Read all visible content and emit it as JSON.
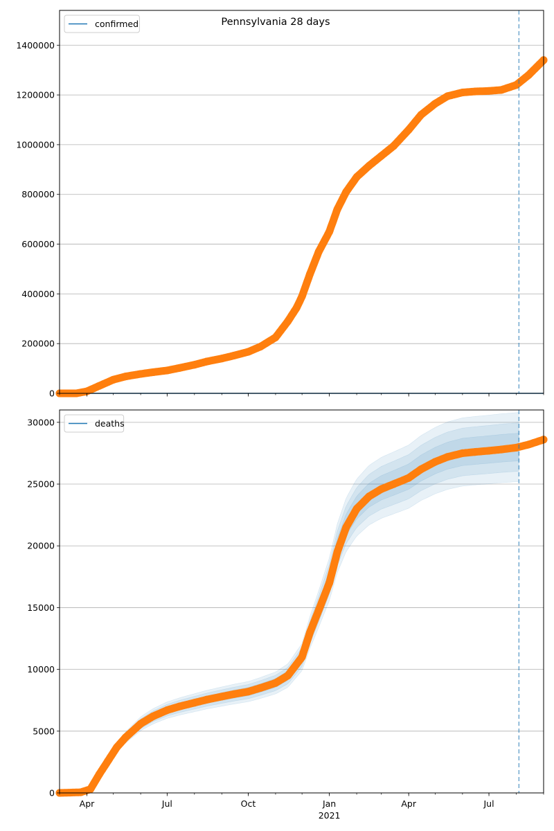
{
  "figure": {
    "title": "Pennsylvania 28 days",
    "colors": {
      "observed": "#ff7f0e",
      "model": "#1f77b4",
      "band": "#1f77b4",
      "grid": "#b0b0b0",
      "forecast_line": "#1f77b4"
    }
  },
  "chart_data": [
    {
      "type": "line",
      "name": "confirmed-panel",
      "legend": [
        "confirmed"
      ],
      "legend_position": "top-left",
      "grid": "horizontal",
      "x_range": [
        "2020-03-01",
        "2021-09-01"
      ],
      "ylim": [
        0,
        1540000
      ],
      "yticks": [
        0,
        200000,
        400000,
        600000,
        800000,
        1000000,
        1200000,
        1400000
      ],
      "xtick_labels": [
        {
          "date": "2020-04-01",
          "label": "Apr"
        },
        {
          "date": "2020-07-01",
          "label": "Jul"
        },
        {
          "date": "2020-10-01",
          "label": "Oct"
        },
        {
          "date": "2021-01-01",
          "label": "Jan",
          "sublabel": "2021"
        },
        {
          "date": "2021-04-01",
          "label": "Apr"
        },
        {
          "date": "2021-07-01",
          "label": "Jul"
        }
      ],
      "forecast_start": "2021-08-04",
      "observed": {
        "x": [
          "2020-03-01",
          "2020-03-20",
          "2020-04-01",
          "2020-04-15",
          "2020-05-01",
          "2020-05-15",
          "2020-06-01",
          "2020-06-15",
          "2020-07-01",
          "2020-07-15",
          "2020-08-01",
          "2020-08-15",
          "2020-09-01",
          "2020-09-15",
          "2020-10-01",
          "2020-10-15",
          "2020-11-01",
          "2020-11-15",
          "2020-11-25",
          "2020-12-01",
          "2020-12-10",
          "2020-12-20",
          "2021-01-01",
          "2021-01-10",
          "2021-01-20",
          "2021-02-01",
          "2021-02-15",
          "2021-03-01",
          "2021-03-15",
          "2021-04-01",
          "2021-04-15",
          "2021-05-01",
          "2021-05-15",
          "2021-06-01",
          "2021-06-15",
          "2021-07-01",
          "2021-07-15",
          "2021-08-01",
          "2021-08-15",
          "2021-09-01"
        ],
        "y": [
          0,
          0,
          8000,
          30000,
          55000,
          68000,
          78000,
          85000,
          92000,
          102000,
          115000,
          128000,
          140000,
          152000,
          167000,
          188000,
          225000,
          290000,
          345000,
          390000,
          480000,
          570000,
          650000,
          740000,
          810000,
          870000,
          915000,
          955000,
          995000,
          1060000,
          1120000,
          1165000,
          1195000,
          1210000,
          1214000,
          1216000,
          1220000,
          1240000,
          1280000,
          1340000
        ]
      },
      "model_line": {
        "x": [
          "2020-03-01",
          "2021-09-01"
        ],
        "y": [
          0,
          0
        ]
      }
    },
    {
      "type": "line",
      "name": "deaths-panel",
      "legend": [
        "deaths"
      ],
      "legend_position": "top-left",
      "grid": "horizontal",
      "x_range": [
        "2020-03-01",
        "2021-09-01"
      ],
      "ylim": [
        0,
        31000
      ],
      "yticks": [
        0,
        5000,
        10000,
        15000,
        20000,
        25000,
        30000
      ],
      "xtick_labels": [
        {
          "date": "2020-04-01",
          "label": "Apr"
        },
        {
          "date": "2020-07-01",
          "label": "Jul"
        },
        {
          "date": "2020-10-01",
          "label": "Oct"
        },
        {
          "date": "2021-01-01",
          "label": "Jan",
          "sublabel": "2021"
        },
        {
          "date": "2021-04-01",
          "label": "Apr"
        },
        {
          "date": "2021-07-01",
          "label": "Jul"
        }
      ],
      "forecast_start": "2021-08-04",
      "observed": {
        "x": [
          "2020-03-01",
          "2020-03-25",
          "2020-04-05",
          "2020-04-15",
          "2020-04-25",
          "2020-05-05",
          "2020-05-15",
          "2020-06-01",
          "2020-06-15",
          "2020-07-01",
          "2020-07-15",
          "2020-08-01",
          "2020-08-15",
          "2020-09-01",
          "2020-09-15",
          "2020-10-01",
          "2020-10-15",
          "2020-11-01",
          "2020-11-15",
          "2020-12-01",
          "2020-12-10",
          "2020-12-20",
          "2021-01-01",
          "2021-01-10",
          "2021-01-20",
          "2021-02-01",
          "2021-02-15",
          "2021-03-01",
          "2021-03-15",
          "2021-04-01",
          "2021-04-15",
          "2021-05-01",
          "2021-05-15",
          "2021-06-01",
          "2021-06-15",
          "2021-07-01",
          "2021-07-15",
          "2021-08-01",
          "2021-08-15",
          "2021-09-01"
        ],
        "y": [
          0,
          50,
          300,
          1500,
          2600,
          3700,
          4500,
          5600,
          6200,
          6700,
          7000,
          7300,
          7550,
          7800,
          8000,
          8200,
          8500,
          8900,
          9500,
          11000,
          13000,
          14800,
          17000,
          19500,
          21500,
          23000,
          24000,
          24600,
          25000,
          25500,
          26200,
          26800,
          27200,
          27500,
          27600,
          27700,
          27800,
          27950,
          28200,
          28600
        ]
      },
      "band_center": {
        "x": [
          "2020-03-01",
          "2020-03-25",
          "2020-04-05",
          "2020-04-15",
          "2020-04-25",
          "2020-05-05",
          "2020-05-15",
          "2020-06-01",
          "2020-06-15",
          "2020-07-01",
          "2020-07-15",
          "2020-08-01",
          "2020-08-15",
          "2020-09-01",
          "2020-09-15",
          "2020-10-01",
          "2020-10-15",
          "2020-11-01",
          "2020-11-15",
          "2020-12-01",
          "2020-12-10",
          "2020-12-20",
          "2021-01-01",
          "2021-01-10",
          "2021-01-20",
          "2021-02-01",
          "2021-02-15",
          "2021-03-01",
          "2021-03-15",
          "2021-04-01",
          "2021-04-15",
          "2021-05-01",
          "2021-05-15",
          "2021-06-01",
          "2021-06-15",
          "2021-07-01",
          "2021-07-15",
          "2021-08-04"
        ],
        "y": [
          0,
          60,
          350,
          1500,
          2600,
          3700,
          4500,
          5600,
          6200,
          6700,
          7000,
          7300,
          7550,
          7800,
          8000,
          8200,
          8500,
          8900,
          9500,
          11000,
          13000,
          14900,
          17300,
          19800,
          21700,
          23100,
          24100,
          24700,
          25100,
          25600,
          26300,
          26900,
          27300,
          27600,
          27700,
          27800,
          27900,
          28000
        ]
      },
      "band_spread": [
        0.04,
        0.07,
        0.1
      ]
    }
  ]
}
